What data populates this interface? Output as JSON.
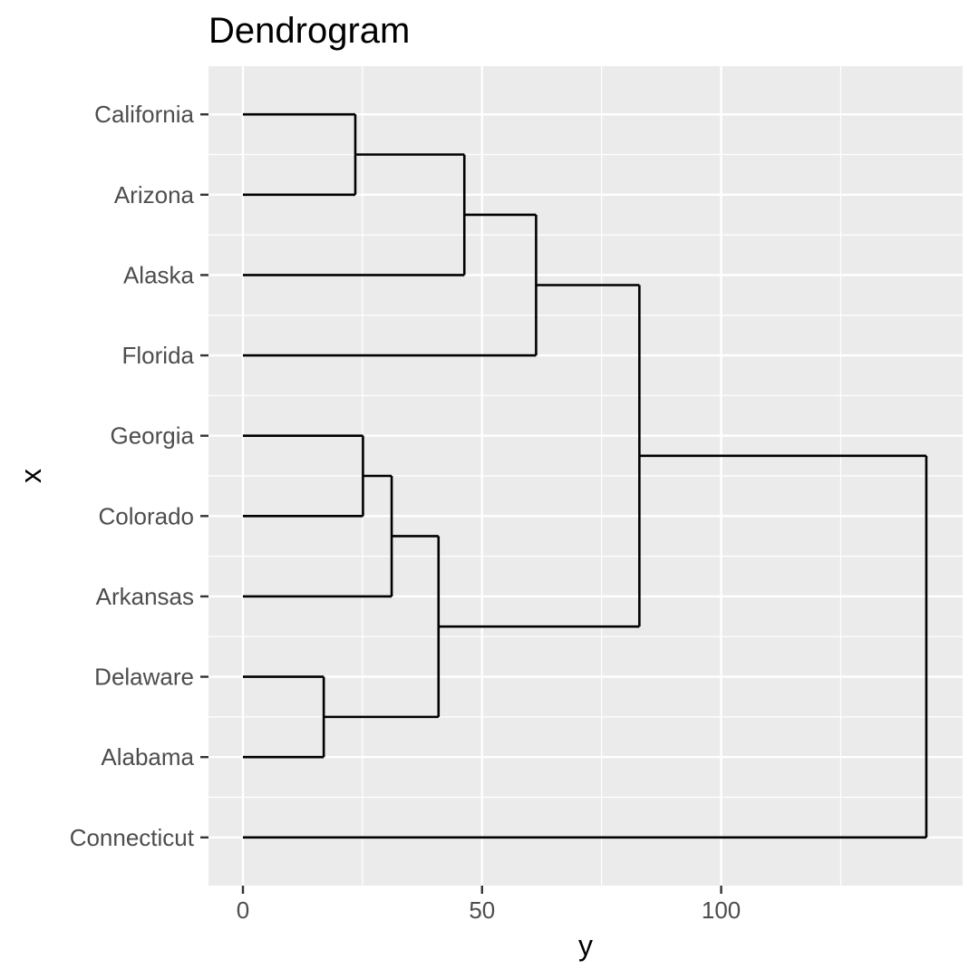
{
  "chart_data": {
    "type": "dendrogram",
    "title": "Dendrogram",
    "xlabel": "x",
    "ylabel": "y",
    "orientation": "horizontal",
    "leaves": [
      "California",
      "Arizona",
      "Alaska",
      "Florida",
      "Georgia",
      "Colorado",
      "Arkansas",
      "Delaware",
      "Alabama",
      "Connecticut"
    ],
    "height_axis": {
      "ticks": [
        0,
        50,
        100
      ],
      "tick_labels": [
        "0",
        "50",
        "100"
      ],
      "range": [
        -7.2,
        150.5
      ]
    },
    "merges": [
      {
        "left": "California",
        "right": "Arizona",
        "height": 23.5
      },
      {
        "left": "California+Arizona",
        "right": "Alaska",
        "height": 46.3
      },
      {
        "left": "California+Arizona+Alaska",
        "right": "Florida",
        "height": 61.3
      },
      {
        "left": "Georgia",
        "right": "Colorado",
        "height": 25.1
      },
      {
        "left": "Georgia+Colorado",
        "right": "Arkansas",
        "height": 31.1
      },
      {
        "left": "Delaware",
        "right": "Alabama",
        "height": 16.9
      },
      {
        "left": "Georgia+Colorado+Arkansas",
        "right": "Delaware+Alabama",
        "height": 40.9
      },
      {
        "left": "California+Arizona+Alaska+Florida",
        "right": "Georgia+Colorado+Arkansas+Delaware+Alabama",
        "height": 82.9
      },
      {
        "left": "California+Arizona+Alaska+Florida+Georgia+Colorado+Arkansas+Delaware+Alabama",
        "right": "Connecticut",
        "height": 142.9
      }
    ],
    "grid": true
  }
}
